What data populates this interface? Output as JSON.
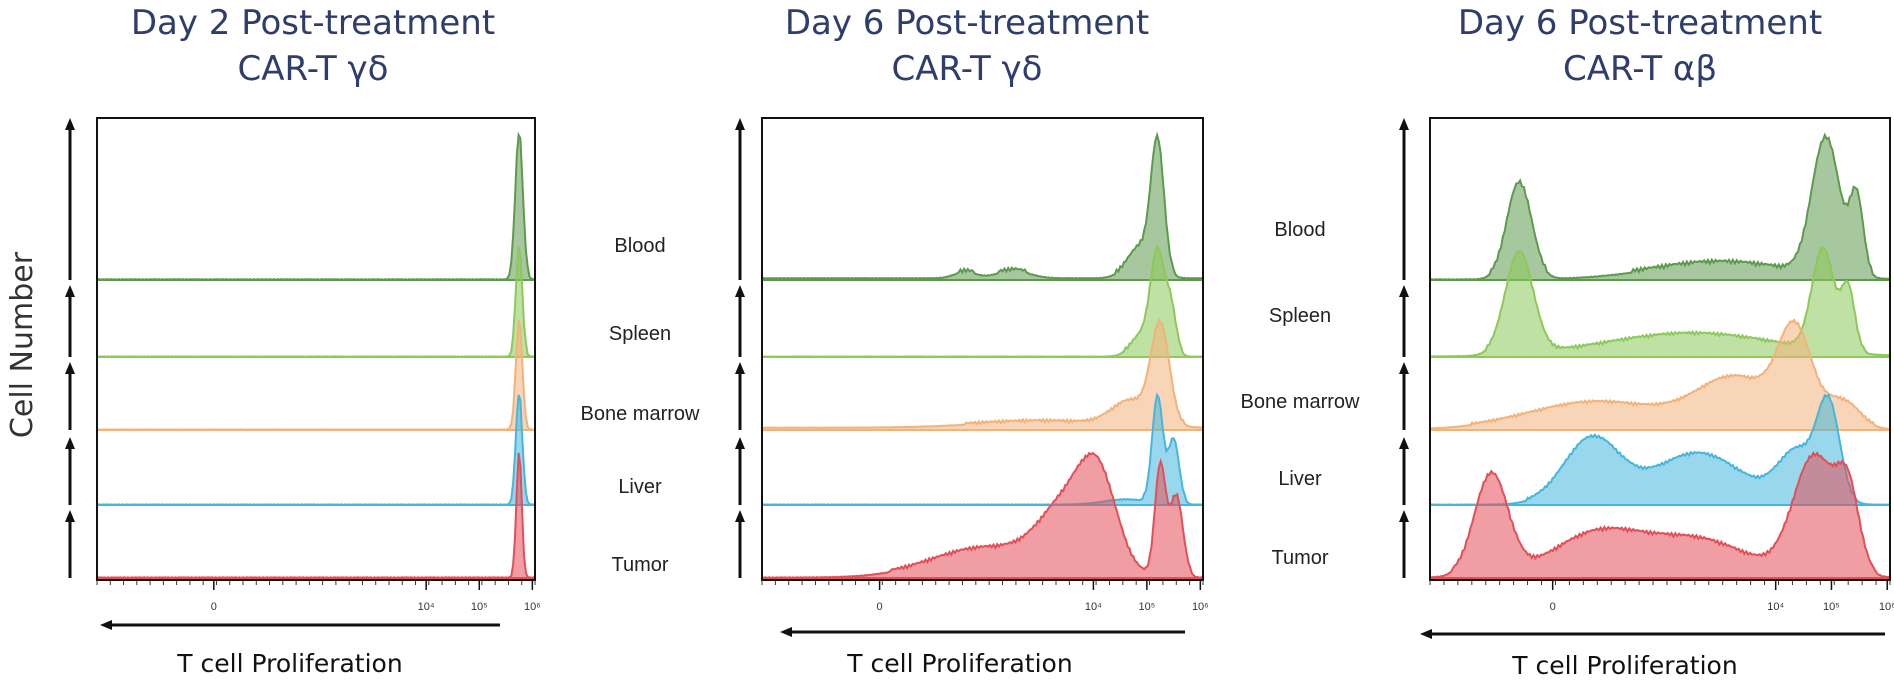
{
  "chart_data": [
    {
      "type": "area",
      "title": [
        "Day 2 Post-treatment",
        "CAR-T γδ"
      ],
      "xlabel": "T cell Proliferation",
      "ylabel": "Cell Number",
      "x_tick_labels": [
        "0",
        "10⁴",
        "10⁵",
        "10⁶"
      ],
      "x_ticks_log": [
        0,
        4,
        5,
        6
      ],
      "series": [
        {
          "name": "Blood",
          "color": "#5e9a4e",
          "peaks": [
            [
              5.75,
              1.0,
              0.07
            ]
          ],
          "baseline": 0.0
        },
        {
          "name": "Spleen",
          "color": "#8cc85a",
          "peaks": [
            [
              5.75,
              1.0,
              0.06
            ]
          ],
          "baseline": 0.0
        },
        {
          "name": "Bone marrow",
          "color": "#f3b27a",
          "peaks": [
            [
              5.75,
              1.0,
              0.06
            ]
          ],
          "baseline": 0.0
        },
        {
          "name": "Liver",
          "color": "#45b6dd",
          "peaks": [
            [
              5.75,
              1.0,
              0.06
            ]
          ],
          "baseline": 0.0
        },
        {
          "name": "Tumor",
          "color": "#e34f57",
          "peaks": [
            [
              5.75,
              1.0,
              0.05
            ]
          ],
          "baseline": 0.0
        }
      ]
    },
    {
      "type": "area",
      "title": [
        "Day 6 Post-treatment",
        "CAR-T γδ"
      ],
      "xlabel": "T cell Proliferation",
      "ylabel": "Cell Number",
      "x_tick_labels": [
        "0",
        "10⁴",
        "10⁵",
        "10⁶"
      ],
      "x_ticks_log": [
        0,
        4,
        5,
        6
      ],
      "series": [
        {
          "name": "Blood",
          "color": "#5e9a4e",
          "peaks": [
            [
              5.2,
              1.0,
              0.12
            ],
            [
              4.9,
              0.25,
              0.25
            ],
            [
              2.5,
              0.06,
              0.3
            ],
            [
              1.6,
              0.05,
              0.2
            ]
          ],
          "baseline": 0.01
        },
        {
          "name": "Spleen",
          "color": "#8cc85a",
          "peaks": [
            [
              5.2,
              1.0,
              0.13
            ],
            [
              5.45,
              0.45,
              0.1
            ],
            [
              4.9,
              0.2,
              0.2
            ]
          ],
          "baseline": 0.0
        },
        {
          "name": "Bone marrow",
          "color": "#f3b27a",
          "peaks": [
            [
              5.25,
              1.0,
              0.17
            ],
            [
              4.7,
              0.25,
              0.35
            ],
            [
              3.0,
              0.06,
              1.2
            ]
          ],
          "baseline": 0.02
        },
        {
          "name": "Liver",
          "color": "#45b6dd",
          "peaks": [
            [
              5.2,
              1.0,
              0.1
            ],
            [
              5.5,
              0.6,
              0.1
            ],
            [
              4.6,
              0.05,
              0.4
            ]
          ],
          "baseline": 0.0
        },
        {
          "name": "Tumor",
          "color": "#e34f57",
          "peaks": [
            [
              5.25,
              0.95,
              0.1
            ],
            [
              5.55,
              0.7,
              0.12
            ],
            [
              4.1,
              0.72,
              0.35
            ],
            [
              3.5,
              0.55,
              0.5
            ],
            [
              2.0,
              0.25,
              1.0
            ]
          ],
          "baseline": 0.0
        }
      ]
    },
    {
      "type": "area",
      "title": [
        "Day 6 Post-treatment",
        "CAR-T αβ"
      ],
      "xlabel": "T cell Proliferation",
      "ylabel": "Cell Number",
      "x_tick_labels": [
        "0",
        "10⁴",
        "10⁵",
        "10⁶"
      ],
      "x_ticks_log": [
        0,
        4,
        5,
        6
      ],
      "series": [
        {
          "name": "Blood",
          "color": "#5e9a4e",
          "peaks": [
            [
              -0.6,
              0.7,
              0.22
            ],
            [
              4.9,
              1.0,
              0.25
            ],
            [
              5.45,
              0.55,
              0.12
            ],
            [
              3.0,
              0.12,
              1.2
            ]
          ],
          "baseline": 0.0
        },
        {
          "name": "Spleen",
          "color": "#8cc85a",
          "peaks": [
            [
              -0.6,
              1.0,
              0.25
            ],
            [
              4.85,
              1.0,
              0.2
            ],
            [
              5.3,
              0.6,
              0.12
            ],
            [
              2.5,
              0.22,
              1.5
            ]
          ],
          "baseline": 0.0
        },
        {
          "name": "Bone marrow",
          "color": "#f3b27a",
          "peaks": [
            [
              4.35,
              1.0,
              0.3
            ],
            [
              3.3,
              0.55,
              0.7
            ],
            [
              0.8,
              0.3,
              1.2
            ],
            [
              5.2,
              0.3,
              0.3
            ]
          ],
          "baseline": 0.0
        },
        {
          "name": "Liver",
          "color": "#45b6dd",
          "peaks": [
            [
              4.95,
              1.0,
              0.2
            ],
            [
              4.4,
              0.55,
              0.35
            ],
            [
              0.7,
              0.7,
              0.5
            ],
            [
              2.6,
              0.55,
              0.8
            ]
          ],
          "baseline": 0.0
        },
        {
          "name": "Tumor",
          "color": "#e34f57",
          "peaks": [
            [
              -1.1,
              0.85,
              0.3
            ],
            [
              4.7,
              1.0,
              0.38
            ],
            [
              5.3,
              0.6,
              0.2
            ],
            [
              0.8,
              0.35,
              0.8
            ],
            [
              2.6,
              0.3,
              0.9
            ]
          ],
          "baseline": 0.0
        }
      ]
    }
  ],
  "row_labels": [
    "Blood",
    "Spleen",
    "Bone marrow",
    "Liver",
    "Tumor"
  ]
}
